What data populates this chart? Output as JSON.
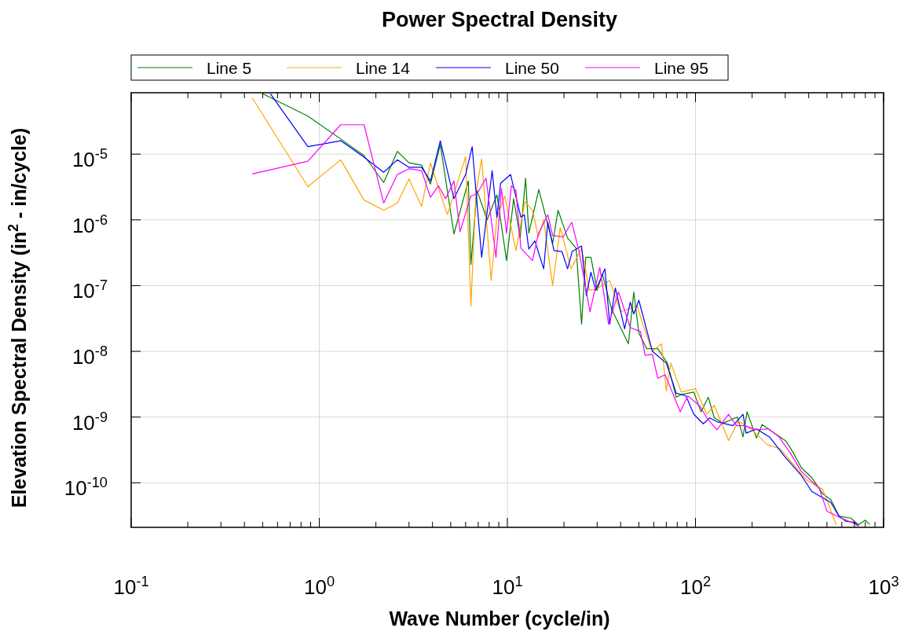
{
  "chart_data": {
    "type": "line",
    "title": "Power Spectral Density",
    "xlabel": "Wave Number (cycle/in)",
    "ylabel": "Elevation Spectral Density (in$^{2}$ - in/cycle)",
    "log": "xy",
    "grid": true,
    "legend": "top",
    "marker": "none",
    "line_style": "solid",
    "xlim": [
      0.1,
      1000
    ],
    "ylim": [
      2.1e-11,
      8.6e-05
    ],
    "xticks": [
      {
        "value": 0.1,
        "label": "10$^{-1}$"
      },
      {
        "value": 0.2,
        "label": null
      },
      {
        "value": 0.3,
        "label": null
      },
      {
        "value": 0.4,
        "label": null
      },
      {
        "value": 0.5,
        "label": null
      },
      {
        "value": 0.6,
        "label": null
      },
      {
        "value": 0.7,
        "label": null
      },
      {
        "value": 0.8,
        "label": null
      },
      {
        "value": 0.9,
        "label": null
      },
      {
        "value": 1,
        "label": "10$^{0}$"
      },
      {
        "value": 2,
        "label": null
      },
      {
        "value": 3,
        "label": null
      },
      {
        "value": 4,
        "label": null
      },
      {
        "value": 5,
        "label": null
      },
      {
        "value": 6,
        "label": null
      },
      {
        "value": 7,
        "label": null
      },
      {
        "value": 8,
        "label": null
      },
      {
        "value": 9,
        "label": null
      },
      {
        "value": 10,
        "label": "10$^{1}$"
      },
      {
        "value": 20,
        "label": null
      },
      {
        "value": 30,
        "label": null
      },
      {
        "value": 40,
        "label": null
      },
      {
        "value": 50,
        "label": null
      },
      {
        "value": 60,
        "label": null
      },
      {
        "value": 70,
        "label": null
      },
      {
        "value": 80,
        "label": null
      },
      {
        "value": 90,
        "label": null
      },
      {
        "value": 100,
        "label": "10$^{2}$"
      },
      {
        "value": 200,
        "label": null
      },
      {
        "value": 300,
        "label": null
      },
      {
        "value": 400,
        "label": null
      },
      {
        "value": 500,
        "label": null
      },
      {
        "value": 600,
        "label": null
      },
      {
        "value": 700,
        "label": null
      },
      {
        "value": 800,
        "label": null
      },
      {
        "value": 900,
        "label": null
      },
      {
        "value": 1000,
        "label": "10$^{3}$"
      }
    ],
    "yticks": [
      {
        "value": 1e-10,
        "label": "10$^{-10}$"
      },
      {
        "value": 1e-09,
        "label": "10$^{-9}$"
      },
      {
        "value": 1e-08,
        "label": "10$^{-8}$"
      },
      {
        "value": 1e-07,
        "label": "10$^{-7}$"
      },
      {
        "value": 1e-06,
        "label": "10$^{-6}$"
      },
      {
        "value": 1e-05,
        "label": "10$^{-5}$"
      }
    ],
    "series": [
      {
        "name": "Line 5",
        "color": "#008000",
        "x": [
          0.5,
          0.87,
          1.3,
          1.73,
          2.2,
          2.6,
          3.0,
          3.5,
          3.9,
          4.4,
          5.2,
          6.2,
          6.4,
          6.9,
          7.8,
          8.8,
          9.9,
          10.8,
          11.7,
          12.5,
          13.0,
          14.7,
          17.4,
          18.6,
          20.9,
          23.2,
          24.8,
          26.1,
          27.8,
          30,
          32,
          35.7,
          44,
          47,
          50,
          55,
          63,
          71,
          79,
          84,
          98,
          107,
          117,
          126,
          140,
          167,
          179,
          188,
          211,
          226,
          256,
          303,
          330,
          365,
          415,
          475,
          525,
          580,
          670,
          735,
          800,
          845
        ],
        "values": [
          8.3e-05,
          3.8e-05,
          1.7e-05,
          9.5e-06,
          3.7e-06,
          1.1e-05,
          7.4e-06,
          6.8e-06,
          3.5e-06,
          1.4e-05,
          6.1e-07,
          3.9e-06,
          2.1e-07,
          2.8e-06,
          1e-06,
          2.4e-06,
          2.4e-07,
          2.1e-06,
          5.3e-07,
          4.3e-06,
          6.3e-07,
          2.9e-06,
          4.4e-07,
          1.4e-06,
          5.3e-07,
          3.7e-07,
          2.6e-08,
          2.7e-07,
          2.7e-07,
          8.5e-08,
          1.5e-07,
          4.5e-08,
          1.3e-08,
          8e-08,
          1.9e-08,
          1.1e-08,
          1.1e-08,
          6.6e-09,
          2e-09,
          2.2e-09,
          2.4e-09,
          1.2e-09,
          2e-09,
          9.7e-10,
          8.1e-10,
          1e-09,
          5e-10,
          1.2e-09,
          4.8e-10,
          7.7e-10,
          6e-10,
          4.3e-10,
          2.9e-10,
          1.7e-10,
          1.2e-10,
          6.8e-11,
          5.5e-11,
          3.1e-11,
          2.9e-11,
          2.3e-11,
          2.7e-11,
          2.3e-11
        ]
      },
      {
        "name": "Line 14",
        "color": "#ffa500",
        "x": [
          0.44,
          0.87,
          1.3,
          1.73,
          2.2,
          2.6,
          3.0,
          3.5,
          3.9,
          4.4,
          4.8,
          6.0,
          6.4,
          6.8,
          7.3,
          8.2,
          8.8,
          9.7,
          11.1,
          12.4,
          13.6,
          14.6,
          15.6,
          17.4,
          19.1,
          21.8,
          24.8,
          27.3,
          30,
          35,
          40,
          49,
          52,
          59,
          66,
          70,
          74,
          84,
          100,
          115,
          126,
          150,
          169,
          200,
          241,
          282,
          390,
          475,
          560
        ],
        "values": [
          7.2e-05,
          3.2e-06,
          8.2e-06,
          2e-06,
          1.4e-06,
          1.8e-06,
          4.2e-06,
          1.6e-06,
          7.4e-06,
          2.5e-06,
          1.2e-06,
          9.2e-06,
          4.9e-08,
          2.5e-06,
          8.5e-06,
          1.2e-07,
          1.1e-06,
          2.3e-06,
          3.4e-07,
          1.9e-06,
          1.4e-06,
          5.5e-07,
          1e-06,
          1e-07,
          7.6e-07,
          1.8e-07,
          3.7e-07,
          8.5e-08,
          9e-08,
          1.2e-07,
          4e-08,
          4.9e-08,
          2.8e-08,
          1e-08,
          1.3e-08,
          2.5e-09,
          6.6e-09,
          2.4e-09,
          2.7e-09,
          1.1e-09,
          1.5e-09,
          4.4e-10,
          8.7e-10,
          6.4e-10,
          3.8e-10,
          3.3e-10,
          1.1e-10,
          7.9e-11,
          2.3e-11
        ]
      },
      {
        "name": "Line 50",
        "color": "#0000ff",
        "x": [
          0.55,
          0.87,
          1.3,
          1.73,
          2.2,
          2.6,
          3.0,
          3.5,
          3.9,
          4.4,
          5.2,
          6.0,
          6.5,
          7.3,
          8.3,
          8.8,
          9.2,
          10.4,
          11.8,
          12.3,
          13,
          14,
          15.6,
          16.4,
          17.7,
          19.5,
          20.9,
          22.1,
          24.8,
          26.3,
          27.8,
          29.5,
          33,
          35,
          37.5,
          42,
          45,
          47,
          50,
          59,
          70,
          79,
          89,
          98,
          110,
          119,
          130,
          158,
          179,
          186,
          211,
          249,
          295,
          365,
          415,
          525,
          580,
          630,
          700,
          735
        ],
        "values": [
          8.3e-05,
          1.3e-05,
          1.6e-05,
          9e-06,
          5.3e-06,
          8.2e-06,
          6.3e-06,
          6.3e-06,
          3.9e-06,
          1.6e-05,
          2.1e-06,
          4.9e-06,
          1.3e-05,
          2.7e-07,
          5.6e-06,
          1.1e-06,
          3.6e-06,
          4.9e-06,
          1.1e-06,
          1.2e-06,
          3.6e-07,
          4.8e-07,
          1.8e-07,
          9.2e-07,
          3.4e-07,
          3.3e-07,
          1.8e-07,
          3.3e-07,
          4e-07,
          7e-08,
          1.6e-07,
          8.5e-08,
          1.8e-07,
          2.6e-08,
          9.2e-08,
          2.2e-08,
          5.6e-08,
          3.7e-08,
          6e-08,
          1e-08,
          6.6e-09,
          2.3e-09,
          2.1e-09,
          1.1e-09,
          7.9e-10,
          9.7e-10,
          8.5e-10,
          7.4e-10,
          1.1e-09,
          5.7e-10,
          6.6e-10,
          4.9e-10,
          2.6e-10,
          1.3e-10,
          7.4e-11,
          5e-11,
          3.1e-11,
          2.6e-11,
          2.5e-11,
          2.2e-11
        ]
      },
      {
        "name": "Line 95",
        "color": "#ff00ff",
        "x": [
          0.44,
          0.87,
          1.3,
          1.73,
          2.2,
          2.6,
          3.0,
          3.5,
          3.9,
          4.3,
          4.7,
          5.2,
          5.6,
          6.4,
          6.9,
          7.7,
          8.7,
          9.3,
          9.9,
          10.5,
          11.1,
          11.8,
          13.6,
          14.6,
          16.4,
          17.4,
          19.8,
          22,
          24,
          27.5,
          31,
          34.5,
          39,
          45,
          51,
          54,
          59,
          63,
          69,
          83,
          91,
          105,
          115,
          130,
          150,
          165,
          183,
          211,
          245,
          278,
          320,
          365,
          455,
          500,
          595,
          700,
          735
        ],
        "values": [
          5e-06,
          7.8e-06,
          2.8e-05,
          2.8e-05,
          1.8e-06,
          4.9e-06,
          6e-06,
          5.6e-06,
          2.2e-06,
          3.3e-06,
          2.1e-06,
          3.9e-06,
          6.6e-07,
          2.3e-06,
          2.5e-06,
          4.3e-06,
          2.7e-07,
          3e-06,
          6.3e-07,
          3.3e-06,
          2.8e-06,
          3.7e-07,
          2.4e-07,
          6.1e-07,
          1.2e-06,
          5.8e-07,
          5.5e-07,
          9.2e-07,
          3.4e-07,
          4e-08,
          1.9e-07,
          2.6e-08,
          8e-08,
          2.3e-08,
          2e-08,
          8.7e-09,
          9e-09,
          3.9e-09,
          4.4e-09,
          1.2e-09,
          2.1e-09,
          1.5e-09,
          9.7e-10,
          6.4e-10,
          1.1e-09,
          7.4e-10,
          7.4e-10,
          6.4e-10,
          6.6e-10,
          5e-10,
          2.8e-10,
          1.5e-10,
          8.2e-11,
          3.7e-11,
          2.9e-11,
          2.4e-11,
          2.2e-11
        ]
      }
    ]
  }
}
